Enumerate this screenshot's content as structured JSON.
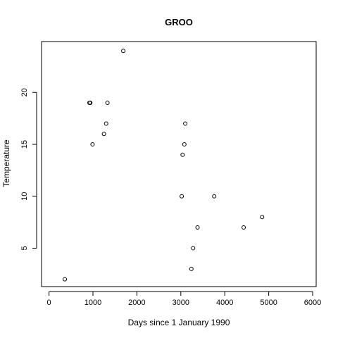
{
  "chart_data": {
    "type": "scatter",
    "title": "GROO",
    "xlabel": "Days since 1 January 1990",
    "ylabel": "Temperature",
    "xlim": [
      -170,
      6080
    ],
    "ylim": [
      1.3,
      24.9
    ],
    "xticks": [
      0,
      1000,
      2000,
      3000,
      4000,
      5000,
      6000
    ],
    "yticks": [
      5,
      10,
      15,
      20
    ],
    "grid": false,
    "legend": "none",
    "series": [
      {
        "points": [
          {
            "x": 360,
            "y": 2
          },
          {
            "x": 920,
            "y": 19
          },
          {
            "x": 940,
            "y": 19
          },
          {
            "x": 990,
            "y": 15
          },
          {
            "x": 1250,
            "y": 16
          },
          {
            "x": 1300,
            "y": 17
          },
          {
            "x": 1330,
            "y": 19
          },
          {
            "x": 1690,
            "y": 24
          },
          {
            "x": 3020,
            "y": 10
          },
          {
            "x": 3040,
            "y": 14
          },
          {
            "x": 3080,
            "y": 15
          },
          {
            "x": 3100,
            "y": 17
          },
          {
            "x": 3240,
            "y": 3
          },
          {
            "x": 3280,
            "y": 5
          },
          {
            "x": 3380,
            "y": 7
          },
          {
            "x": 3760,
            "y": 10
          },
          {
            "x": 4430,
            "y": 7
          },
          {
            "x": 4850,
            "y": 8
          }
        ]
      }
    ]
  }
}
